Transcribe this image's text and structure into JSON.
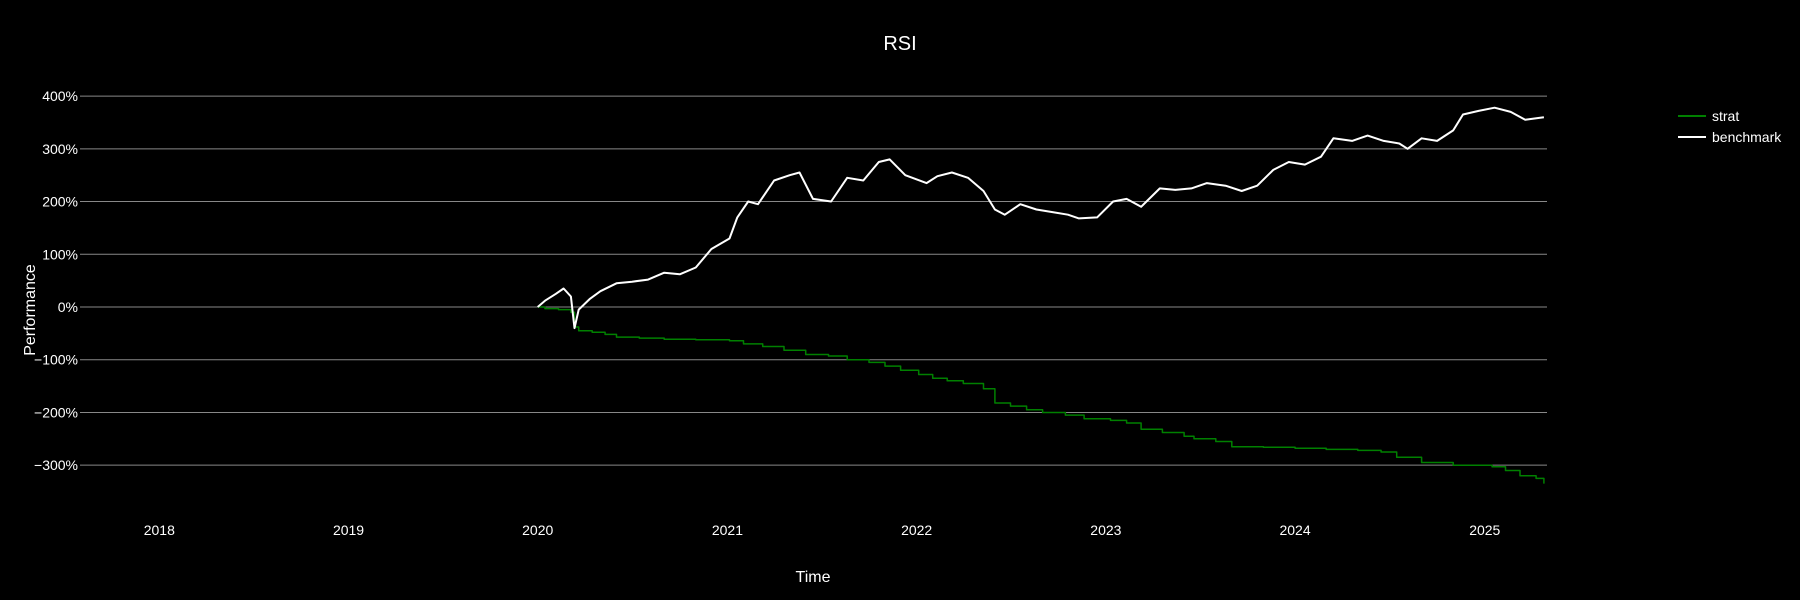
{
  "chart_data": {
    "type": "line",
    "title": "RSI",
    "xlabel": "Time",
    "ylabel": "Performance",
    "xlim": [
      "2017-08-01",
      "2025-05-01"
    ],
    "ylim": [
      -385,
      440
    ],
    "x_ticks": [
      "2018",
      "2019",
      "2020",
      "2021",
      "2022",
      "2023",
      "2024",
      "2025"
    ],
    "y_ticks": [
      400,
      300,
      200,
      100,
      0,
      -100,
      -200,
      -300
    ],
    "y_tick_labels": [
      "400%",
      "300%",
      "200%",
      "100%",
      "0%",
      "−100%",
      "−200%",
      "−300%"
    ],
    "grid": "horizontal",
    "legend": "top-right",
    "series": [
      {
        "name": "strat",
        "color": "#008000",
        "step": true,
        "points": [
          [
            "2020-01-01",
            0
          ],
          [
            "2020-01-15",
            -3
          ],
          [
            "2020-02-10",
            -5
          ],
          [
            "2020-03-05",
            -10
          ],
          [
            "2020-03-12",
            -38
          ],
          [
            "2020-03-20",
            -45
          ],
          [
            "2020-04-15",
            -48
          ],
          [
            "2020-05-10",
            -52
          ],
          [
            "2020-06-01",
            -57
          ],
          [
            "2020-07-15",
            -59
          ],
          [
            "2020-09-01",
            -61
          ],
          [
            "2020-11-01",
            -62
          ],
          [
            "2021-01-05",
            -64
          ],
          [
            "2021-02-01",
            -70
          ],
          [
            "2021-03-10",
            -75
          ],
          [
            "2021-04-20",
            -82
          ],
          [
            "2021-06-01",
            -90
          ],
          [
            "2021-07-15",
            -93
          ],
          [
            "2021-08-20",
            -100
          ],
          [
            "2021-10-01",
            -105
          ],
          [
            "2021-11-01",
            -112
          ],
          [
            "2021-12-01",
            -120
          ],
          [
            "2022-01-05",
            -128
          ],
          [
            "2022-02-01",
            -135
          ],
          [
            "2022-03-01",
            -140
          ],
          [
            "2022-04-01",
            -145
          ],
          [
            "2022-05-10",
            -155
          ],
          [
            "2022-06-01",
            -182
          ],
          [
            "2022-07-01",
            -188
          ],
          [
            "2022-08-01",
            -195
          ],
          [
            "2022-09-01",
            -200
          ],
          [
            "2022-10-15",
            -205
          ],
          [
            "2022-11-20",
            -212
          ],
          [
            "2023-01-10",
            -215
          ],
          [
            "2023-02-10",
            -220
          ],
          [
            "2023-03-10",
            -232
          ],
          [
            "2023-04-20",
            -238
          ],
          [
            "2023-06-01",
            -245
          ],
          [
            "2023-06-20",
            -250
          ],
          [
            "2023-08-01",
            -255
          ],
          [
            "2023-09-01",
            -265
          ],
          [
            "2023-11-01",
            -266
          ],
          [
            "2024-01-01",
            -268
          ],
          [
            "2024-03-01",
            -270
          ],
          [
            "2024-05-01",
            -272
          ],
          [
            "2024-06-15",
            -275
          ],
          [
            "2024-07-15",
            -285
          ],
          [
            "2024-09-01",
            -295
          ],
          [
            "2024-11-01",
            -300
          ],
          [
            "2025-01-15",
            -303
          ],
          [
            "2025-02-10",
            -310
          ],
          [
            "2025-03-10",
            -320
          ],
          [
            "2025-04-10",
            -325
          ],
          [
            "2025-04-25",
            -335
          ]
        ]
      },
      {
        "name": "benchmark",
        "color": "#ffffff",
        "step": false,
        "points": [
          [
            "2020-01-01",
            0
          ],
          [
            "2020-01-15",
            12
          ],
          [
            "2020-02-05",
            25
          ],
          [
            "2020-02-20",
            35
          ],
          [
            "2020-03-05",
            20
          ],
          [
            "2020-03-12",
            -40
          ],
          [
            "2020-03-20",
            -5
          ],
          [
            "2020-04-10",
            15
          ],
          [
            "2020-05-01",
            30
          ],
          [
            "2020-06-01",
            45
          ],
          [
            "2020-07-01",
            48
          ],
          [
            "2020-08-01",
            52
          ],
          [
            "2020-09-01",
            65
          ],
          [
            "2020-10-01",
            62
          ],
          [
            "2020-11-01",
            75
          ],
          [
            "2020-12-01",
            110
          ],
          [
            "2021-01-05",
            130
          ],
          [
            "2021-01-20",
            170
          ],
          [
            "2021-02-10",
            200
          ],
          [
            "2021-03-01",
            195
          ],
          [
            "2021-04-01",
            240
          ],
          [
            "2021-05-01",
            250
          ],
          [
            "2021-05-20",
            255
          ],
          [
            "2021-06-15",
            205
          ],
          [
            "2021-07-20",
            200
          ],
          [
            "2021-08-20",
            245
          ],
          [
            "2021-09-20",
            240
          ],
          [
            "2021-10-20",
            275
          ],
          [
            "2021-11-10",
            280
          ],
          [
            "2021-12-10",
            250
          ],
          [
            "2022-01-20",
            235
          ],
          [
            "2022-02-10",
            248
          ],
          [
            "2022-03-10",
            255
          ],
          [
            "2022-04-10",
            245
          ],
          [
            "2022-05-10",
            220
          ],
          [
            "2022-06-01",
            185
          ],
          [
            "2022-06-20",
            175
          ],
          [
            "2022-07-20",
            195
          ],
          [
            "2022-08-20",
            185
          ],
          [
            "2022-09-20",
            180
          ],
          [
            "2022-10-20",
            175
          ],
          [
            "2022-11-10",
            168
          ],
          [
            "2022-12-15",
            170
          ],
          [
            "2023-01-15",
            200
          ],
          [
            "2023-02-10",
            205
          ],
          [
            "2023-03-10",
            190
          ],
          [
            "2023-04-15",
            225
          ],
          [
            "2023-05-15",
            222
          ],
          [
            "2023-06-15",
            225
          ],
          [
            "2023-07-15",
            235
          ],
          [
            "2023-08-20",
            230
          ],
          [
            "2023-09-20",
            220
          ],
          [
            "2023-10-20",
            230
          ],
          [
            "2023-11-20",
            260
          ],
          [
            "2023-12-20",
            275
          ],
          [
            "2024-01-20",
            270
          ],
          [
            "2024-02-20",
            285
          ],
          [
            "2024-03-15",
            320
          ],
          [
            "2024-04-20",
            315
          ],
          [
            "2024-05-20",
            325
          ],
          [
            "2024-06-20",
            315
          ],
          [
            "2024-07-20",
            310
          ],
          [
            "2024-08-05",
            300
          ],
          [
            "2024-09-01",
            320
          ],
          [
            "2024-10-01",
            315
          ],
          [
            "2024-11-01",
            335
          ],
          [
            "2024-11-20",
            365
          ],
          [
            "2024-12-20",
            372
          ],
          [
            "2025-01-20",
            378
          ],
          [
            "2025-02-20",
            370
          ],
          [
            "2025-03-20",
            355
          ],
          [
            "2025-04-25",
            360
          ]
        ]
      }
    ]
  }
}
